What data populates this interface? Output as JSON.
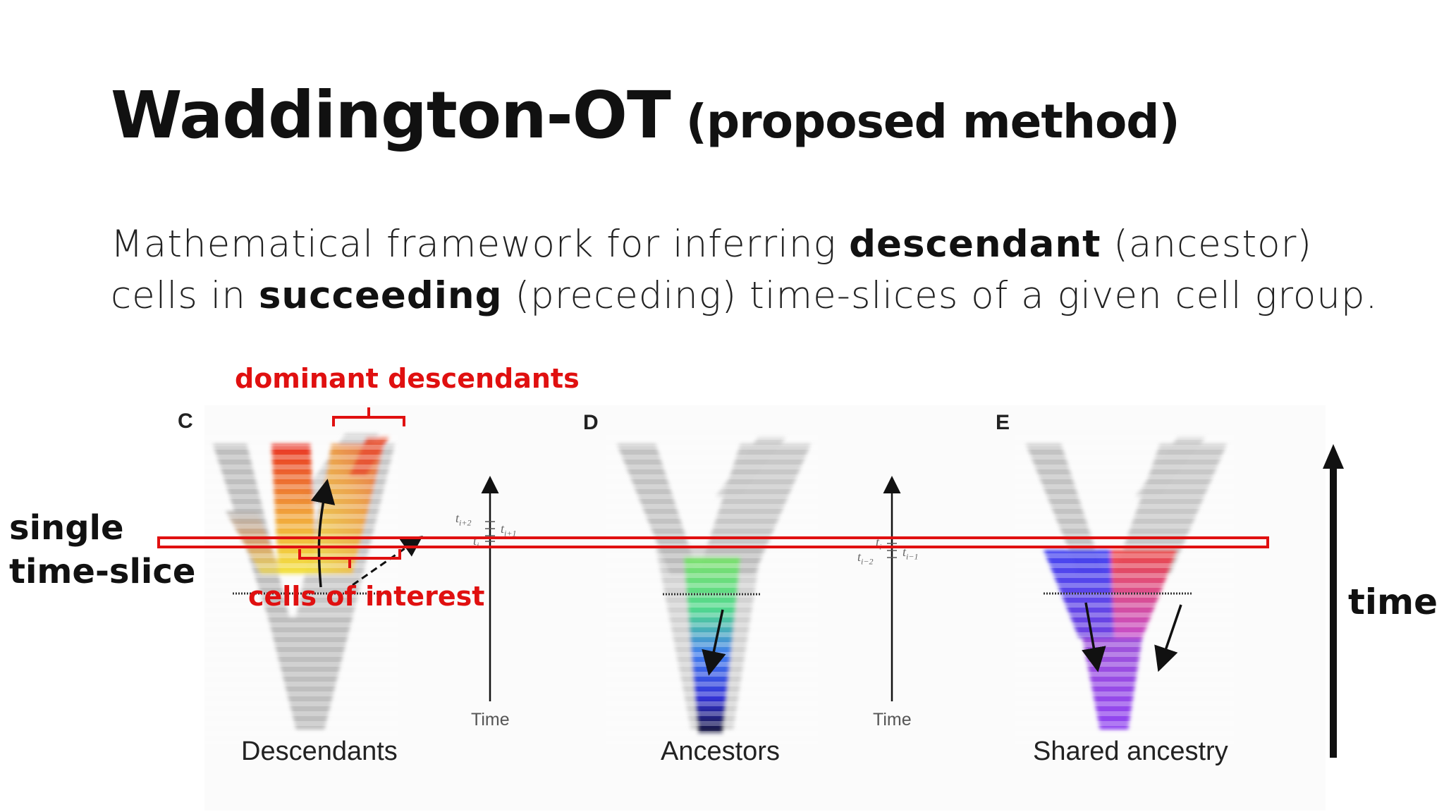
{
  "title": {
    "main": "Waddington-OT",
    "paren": "(proposed method)"
  },
  "subtitle": {
    "l1_a": "Mathematical framework for inferring ",
    "l1_b": "descendant",
    "l1_c": " (ancestor)",
    "l2_a": "cells in ",
    "l2_b": "succeeding",
    "l2_c": " (preceding) time-slices of a given cell group."
  },
  "panels": [
    {
      "letter": "C",
      "caption": "Descendants",
      "axis_label": "Time"
    },
    {
      "letter": "D",
      "caption": "Ancestors",
      "axis_label": "Time"
    },
    {
      "letter": "E",
      "caption": "Shared ancestry"
    }
  ],
  "ticks": {
    "c_top": "t",
    "c_top_sub": "i+2",
    "c_mid": "t",
    "c_mid_sub": "i+1",
    "c_low": "t",
    "c_low_sub": "i",
    "d_a": "t",
    "d_a_sub": "i",
    "d_b": "t",
    "d_b_sub": "i−2",
    "d_c": "t",
    "d_c_sub": "i−1"
  },
  "annotations": {
    "dominant": "dominant descendants",
    "cells_of_interest": "cells of interest",
    "single_line1": "single",
    "single_line2": "time-slice",
    "time": "time"
  },
  "colors": {
    "annotation_red": "#e01010",
    "cloud_gray": "#a8a8a8",
    "text_dark": "#111111"
  }
}
